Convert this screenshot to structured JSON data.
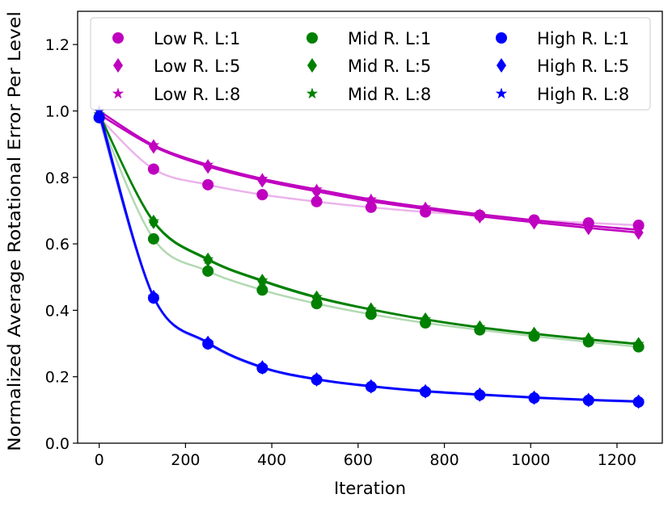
{
  "chart_data": {
    "type": "line",
    "title": "",
    "xlabel": "Iteration",
    "ylabel": "Normalized Average Rotational Error Per Level",
    "xlim": [
      -50,
      1305
    ],
    "ylim": [
      0.0,
      1.3
    ],
    "xticks": [
      0,
      200,
      400,
      600,
      800,
      1000,
      1200
    ],
    "xtick_labels": [
      "0",
      "200",
      "400",
      "600",
      "800",
      "1000",
      "1200"
    ],
    "yticks": [
      0.0,
      0.2,
      0.4,
      0.6,
      0.8,
      1.0,
      1.2
    ],
    "ytick_labels": [
      "0.0",
      "0.2",
      "0.4",
      "0.6",
      "0.8",
      "1.0",
      "1.2"
    ],
    "grid": false,
    "legend_position": "top",
    "legend_columns": 3,
    "x": [
      0,
      126,
      252,
      378,
      504,
      630,
      756,
      882,
      1008,
      1134,
      1250
    ],
    "series": [
      {
        "name": "Low R. L:1",
        "color": "#bf00bf",
        "marker": "circle",
        "values": [
          0.98,
          0.825,
          0.778,
          0.748,
          0.727,
          0.71,
          0.696,
          0.686,
          0.672,
          0.663,
          0.656
        ]
      },
      {
        "name": "Low R. L:5",
        "color": "#bf00bf",
        "marker": "diamond",
        "values": [
          0.99,
          0.893,
          0.833,
          0.791,
          0.758,
          0.728,
          0.705,
          0.683,
          0.665,
          0.648,
          0.634
        ]
      },
      {
        "name": "Low R. L:8",
        "color": "#bf00bf",
        "marker": "star",
        "values": [
          1.0,
          0.897,
          0.838,
          0.796,
          0.764,
          0.734,
          0.71,
          0.689,
          0.671,
          0.655,
          0.642
        ]
      },
      {
        "name": "Mid R. L:1",
        "color": "#008000",
        "marker": "circle",
        "values": [
          0.98,
          0.615,
          0.518,
          0.461,
          0.42,
          0.388,
          0.362,
          0.341,
          0.322,
          0.305,
          0.29
        ]
      },
      {
        "name": "Mid R. L:5",
        "color": "#008000",
        "marker": "diamond",
        "values": [
          0.99,
          0.666,
          0.552,
          0.488,
          0.438,
          0.402,
          0.372,
          0.348,
          0.329,
          0.312,
          0.298
        ]
      },
      {
        "name": "Mid R. L:8",
        "color": "#008000",
        "marker": "star",
        "values": [
          0.99,
          0.668,
          0.554,
          0.49,
          0.44,
          0.403,
          0.373,
          0.349,
          0.33,
          0.313,
          0.299
        ]
      },
      {
        "name": "High R. L:1",
        "color": "#0000ff",
        "marker": "circle",
        "values": [
          0.98,
          0.437,
          0.299,
          0.226,
          0.191,
          0.17,
          0.155,
          0.145,
          0.136,
          0.129,
          0.124
        ]
      },
      {
        "name": "High R. L:5",
        "color": "#0000ff",
        "marker": "diamond",
        "values": [
          0.99,
          0.44,
          0.302,
          0.228,
          0.192,
          0.171,
          0.156,
          0.146,
          0.137,
          0.13,
          0.125
        ]
      },
      {
        "name": "High R. L:8",
        "color": "#0000ff",
        "marker": "star",
        "values": [
          1.0,
          0.441,
          0.303,
          0.229,
          0.193,
          0.172,
          0.157,
          0.147,
          0.138,
          0.131,
          0.126
        ]
      }
    ]
  }
}
